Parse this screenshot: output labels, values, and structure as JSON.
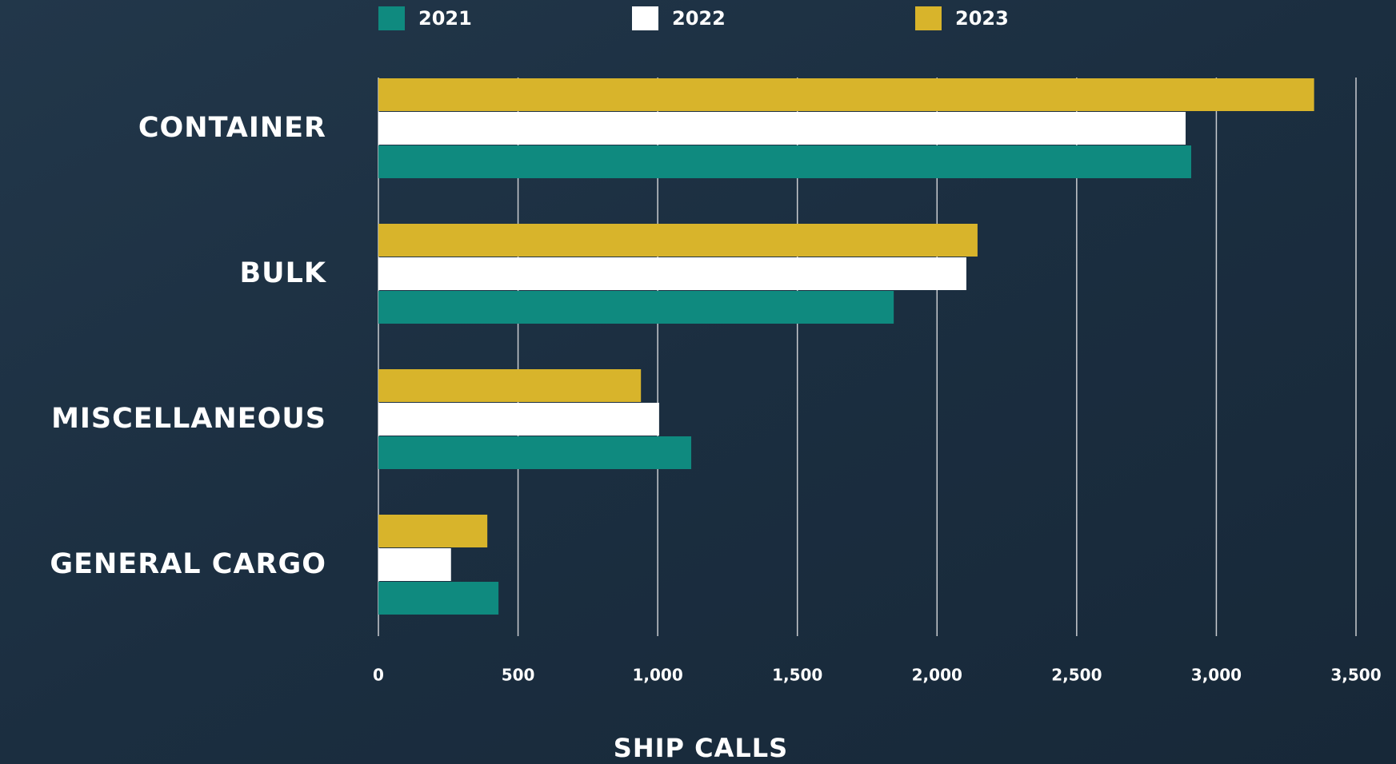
{
  "chart_data": {
    "type": "barh",
    "x_label": "SHIP CALLS",
    "categories": [
      "CONTAINER",
      "BULK",
      "MISCELLANEOUS",
      "GENERAL CARGO"
    ],
    "series": [
      {
        "name": "2021",
        "color": "#0f8a7f",
        "values": [
          2910,
          1845,
          1120,
          430
        ]
      },
      {
        "name": "2022",
        "color": "#ffffff",
        "values": [
          2890,
          2105,
          1005,
          260
        ]
      },
      {
        "name": "2023",
        "color": "#d8b42b",
        "values": [
          3350,
          2145,
          940,
          390
        ]
      }
    ],
    "xlim": [
      0,
      3500
    ],
    "xticks": [
      0,
      500,
      {
        "value": 1000,
        "label": "1,000"
      },
      {
        "value": 1500,
        "label": "1,500"
      },
      {
        "value": 2000,
        "label": "2,000"
      },
      {
        "value": 2500,
        "label": "2,500"
      },
      {
        "value": 3000,
        "label": "3,000"
      },
      {
        "value": 3500,
        "label": "3,500"
      }
    ],
    "grid": true
  }
}
